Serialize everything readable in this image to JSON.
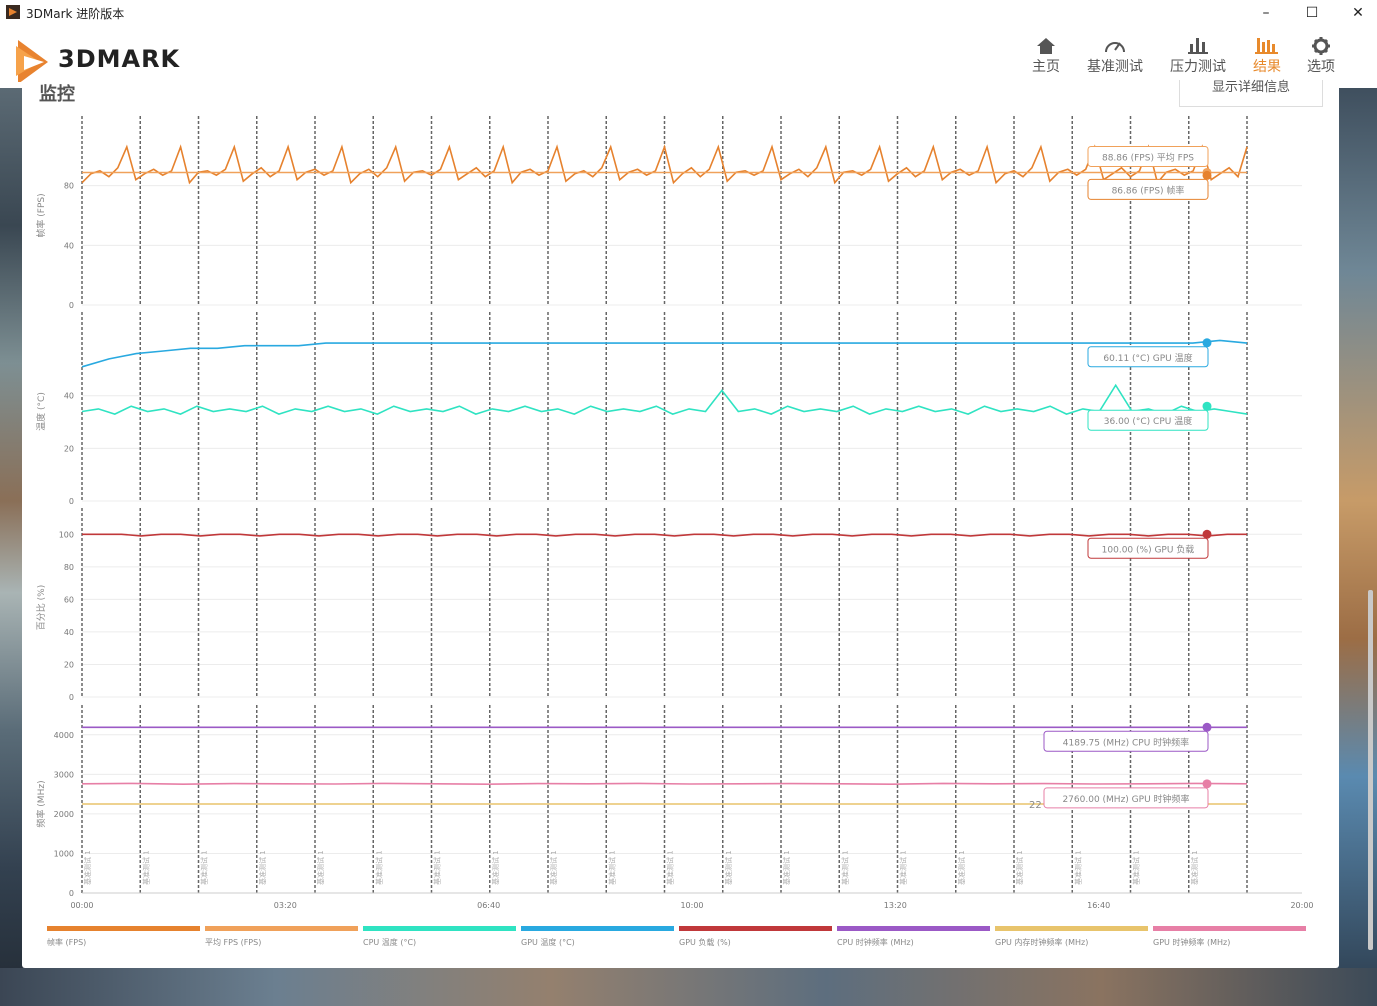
{
  "window": {
    "title": "3DMark 进阶版本",
    "minimize_glyph": "–",
    "maximize_glyph": "☐",
    "close_glyph": "✕"
  },
  "header": {
    "logo_text": "3DMARK",
    "nav": [
      {
        "label": "主页",
        "icon": "home-icon",
        "active": false
      },
      {
        "label": "基准测试",
        "icon": "gauge-icon",
        "active": false
      },
      {
        "label": "压力测试",
        "icon": "bar-chart-icon",
        "active": false
      },
      {
        "label": "结果",
        "icon": "results-icon",
        "active": true
      },
      {
        "label": "选项",
        "icon": "gear-icon",
        "active": false
      }
    ]
  },
  "panel": {
    "title": "监控",
    "detail_button": "显示详细信息"
  },
  "colors": {
    "accent": "#e88a2c",
    "fps": "#e6822e",
    "avg_fps": "#f0a15a",
    "cpu_temp": "#2fe3c2",
    "gpu_temp": "#29a9e0",
    "gpu_load": "#c0383a",
    "cpu_clock": "#9b59c6",
    "gpu_mem_clock": "#e8c46c",
    "gpu_clock": "#e77fa6"
  },
  "chart_data": [
    {
      "type": "line",
      "ylabel": "帧率 (FPS)",
      "yticks": [
        0,
        40,
        80
      ],
      "ylim": [
        0,
        120
      ],
      "series": [
        {
          "name": "帧率 (FPS)",
          "values": [
            82,
            88,
            90,
            86,
            92,
            106,
            84,
            88,
            91,
            87,
            90,
            106,
            82,
            89,
            90,
            87,
            91,
            106,
            83,
            88,
            92,
            86,
            90,
            106,
            84,
            89,
            91,
            87,
            90,
            106,
            82,
            88,
            91,
            86,
            92,
            106,
            83,
            89,
            90,
            87,
            91,
            106,
            84,
            88,
            92,
            86,
            90,
            106,
            82,
            89,
            91,
            87,
            90,
            106,
            83,
            88,
            90,
            86,
            92,
            106,
            84,
            89,
            91,
            87,
            90,
            106,
            82,
            88,
            92,
            86,
            91,
            106,
            83,
            89,
            90,
            87,
            90,
            106,
            84,
            88,
            91,
            86,
            92,
            106,
            82,
            89,
            90,
            87,
            91,
            106,
            83,
            88,
            92,
            86,
            90,
            106,
            84,
            89,
            91,
            87,
            90,
            106,
            82,
            88,
            90,
            86,
            92,
            106,
            83,
            89,
            91,
            87,
            91,
            106,
            84,
            88,
            92,
            86,
            90,
            106,
            82,
            89,
            91,
            87,
            90,
            106,
            84,
            88,
            92,
            86,
            106
          ]
        },
        {
          "name": "平均 FPS (FPS)",
          "values": [
            88.86,
            88.86
          ]
        }
      ],
      "callouts": [
        {
          "value": "88.86",
          "unit": "(FPS)",
          "name": "平均 FPS"
        },
        {
          "value": "86.86",
          "unit": "(FPS)",
          "name": "帧率"
        }
      ]
    },
    {
      "type": "line",
      "ylabel": "温度 (°C)",
      "yticks": [
        0,
        20,
        40
      ],
      "ylim": [
        0,
        68
      ],
      "series": [
        {
          "name": "GPU 温度 (°C)",
          "values": [
            51,
            54,
            56,
            57,
            58,
            58,
            59,
            59,
            59,
            60,
            60,
            60,
            60,
            60,
            60,
            60,
            60,
            60,
            60,
            60,
            60,
            60,
            60,
            60,
            60,
            60,
            60,
            60,
            60,
            60,
            60,
            60,
            60,
            60,
            60,
            60,
            60,
            60,
            60,
            60,
            60,
            60,
            61,
            60
          ]
        },
        {
          "name": "CPU 温度 (°C)",
          "values": [
            34,
            35,
            33,
            36,
            34,
            35,
            33,
            36,
            34,
            35,
            34,
            36,
            33,
            35,
            34,
            36,
            34,
            35,
            33,
            36,
            34,
            35,
            34,
            36,
            33,
            35,
            34,
            36,
            34,
            35,
            33,
            36,
            34,
            35,
            34,
            36,
            33,
            35,
            34,
            42,
            34,
            35,
            33,
            36,
            34,
            35,
            34,
            36,
            33,
            35,
            34,
            36,
            34,
            35,
            33,
            36,
            34,
            35,
            34,
            36,
            33,
            35,
            34,
            44,
            34,
            35,
            33,
            36,
            34,
            35,
            34,
            33
          ]
        }
      ],
      "callouts": [
        {
          "value": "60.11",
          "unit": "(°C)",
          "name": "GPU 温度"
        },
        {
          "value": "36.00",
          "unit": "(°C)",
          "name": "CPU 温度"
        }
      ]
    },
    {
      "type": "line",
      "ylabel": "百分比 (%)",
      "yticks": [
        0,
        20,
        40,
        60,
        80,
        100
      ],
      "ylim": [
        0,
        110
      ],
      "series": [
        {
          "name": "GPU 负载 (%)",
          "values": [
            100,
            100,
            100,
            99,
            100,
            100,
            99,
            100,
            100,
            99,
            100,
            100,
            99,
            100,
            100,
            99,
            100,
            100,
            99,
            100,
            100,
            99,
            100,
            100,
            99,
            100,
            100,
            99,
            100,
            100,
            99,
            100,
            100,
            99,
            100,
            100,
            99,
            100,
            100,
            99,
            100,
            100,
            99,
            100,
            100,
            99,
            100,
            100,
            99,
            100,
            100,
            99,
            100,
            100,
            99,
            100,
            100,
            99,
            100,
            100
          ]
        }
      ],
      "callouts": [
        {
          "value": "100.00",
          "unit": "(%)",
          "name": "GPU 负载"
        }
      ]
    },
    {
      "type": "line",
      "ylabel": "频率 (MHz)",
      "yticks": [
        0,
        1000,
        2000,
        3000,
        4000
      ],
      "ylim": [
        0,
        4500
      ],
      "series": [
        {
          "name": "CPU 时钟频率 (MHz)",
          "values": [
            4189.75,
            4189.75
          ]
        },
        {
          "name": "GPU 时钟频率 (MHz)",
          "values": [
            2760,
            2770,
            2750,
            2765,
            2760,
            2755,
            2770,
            2760,
            2750,
            2765,
            2760,
            2770,
            2755,
            2760,
            2765,
            2760,
            2750,
            2770,
            2760,
            2765,
            2755,
            2760,
            2770,
            2760
          ]
        },
        {
          "name": "GPU 内存时钟频率 (MHz)",
          "values": [
            2250,
            2250
          ]
        }
      ],
      "callouts": [
        {
          "value": "4189.75",
          "unit": "(MHz)",
          "name": "CPU 时钟频率"
        },
        {
          "value": "2760.00",
          "unit": "(MHz)",
          "name": "GPU 时钟频率"
        }
      ],
      "partial_label": "22"
    }
  ],
  "x_axis": {
    "ticks": [
      "00:00",
      "03:20",
      "06:40",
      "10:00",
      "13:20",
      "16:40",
      "20:00"
    ],
    "loop_label": "基准测试 1",
    "loop_count": 20
  },
  "legend": [
    {
      "name": "帧率 (FPS)",
      "color": "#e6822e"
    },
    {
      "name": "平均 FPS (FPS)",
      "color": "#f0a15a"
    },
    {
      "name": "CPU 温度 (°C)",
      "color": "#2fe3c2"
    },
    {
      "name": "GPU 温度 (°C)",
      "color": "#29a9e0"
    },
    {
      "name": "GPU 负载 (%)",
      "color": "#c0383a"
    },
    {
      "name": "CPU 时钟频率 (MHz)",
      "color": "#9b59c6"
    },
    {
      "name": "GPU 内存时钟频率 (MHz)",
      "color": "#e8c46c"
    },
    {
      "name": "GPU 时钟频率 (MHz)",
      "color": "#e77fa6"
    }
  ]
}
